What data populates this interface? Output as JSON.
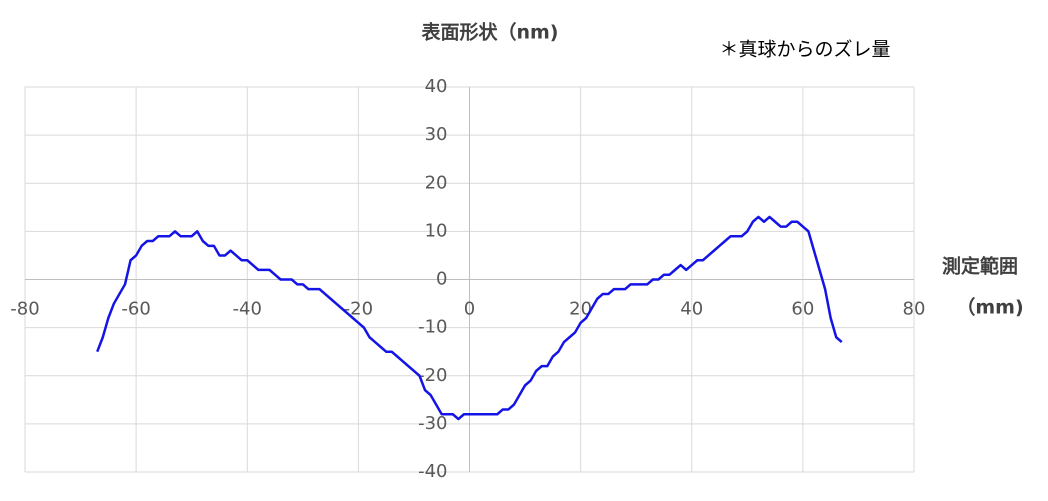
{
  "chart_data": {
    "type": "line",
    "title": "表面形状（nm)",
    "annotation": "＊真球からのズレ量",
    "x_label": "測定範囲",
    "x_unit": "（mm)",
    "x": [
      -67,
      -66,
      -65,
      -64,
      -63,
      -62,
      -61,
      -60,
      -59,
      -58,
      -57,
      -56,
      -55,
      -54,
      -53,
      -52,
      -51,
      -50,
      -49,
      -48,
      -47,
      -46,
      -45,
      -44,
      -43,
      -42,
      -41,
      -40,
      -39,
      -38,
      -37,
      -36,
      -35,
      -34,
      -33,
      -32,
      -31,
      -30,
      -29,
      -28,
      -27,
      -26,
      -25,
      -24,
      -23,
      -22,
      -21,
      -20,
      -19,
      -18,
      -17,
      -16,
      -15,
      -14,
      -13,
      -12,
      -11,
      -10,
      -9,
      -8,
      -7,
      -6,
      -5,
      -4,
      -3,
      -2,
      -1,
      0,
      1,
      2,
      3,
      4,
      5,
      6,
      7,
      8,
      9,
      10,
      11,
      12,
      13,
      14,
      15,
      16,
      17,
      18,
      19,
      20,
      21,
      22,
      23,
      24,
      25,
      26,
      27,
      28,
      29,
      30,
      31,
      32,
      33,
      34,
      35,
      36,
      37,
      38,
      39,
      40,
      41,
      42,
      43,
      44,
      45,
      46,
      47,
      48,
      49,
      50,
      51,
      52,
      53,
      54,
      55,
      56,
      57,
      58,
      59,
      60,
      61,
      62,
      63,
      64,
      65,
      66,
      67
    ],
    "series": [
      {
        "color": "#1414e6",
        "values": [
          -15,
          -12,
          -8,
          -5,
          -3,
          -1,
          4,
          5,
          7,
          8,
          8,
          9,
          9,
          9,
          10,
          9,
          9,
          9,
          10,
          8,
          7,
          7,
          5,
          5,
          6,
          5,
          4,
          4,
          3,
          2,
          2,
          2,
          1,
          0,
          0,
          0,
          -1,
          -1,
          -2,
          -2,
          -2,
          -3,
          -4,
          -5,
          -6,
          -7,
          -8,
          -9,
          -10,
          -12,
          -13,
          -14,
          -15,
          -15,
          -16,
          -17,
          -18,
          -19,
          -20,
          -23,
          -24,
          -26,
          -28,
          -28,
          -28,
          -29,
          -28,
          -28,
          -28,
          -28,
          -28,
          -28,
          -28,
          -27,
          -27,
          -26,
          -24,
          -22,
          -21,
          -19,
          -18,
          -18,
          -16,
          -15,
          -13,
          -12,
          -11,
          -9,
          -8,
          -6,
          -4,
          -3,
          -3,
          -2,
          -2,
          -2,
          -1,
          -1,
          -1,
          -1,
          0,
          0,
          1,
          1,
          2,
          3,
          2,
          3,
          4,
          4,
          5,
          6,
          7,
          8,
          9,
          9,
          9,
          10,
          12,
          13,
          12,
          13,
          12,
          11,
          11,
          12,
          12,
          11,
          10,
          6,
          2,
          -2,
          -8,
          -12,
          -13
        ]
      }
    ],
    "xlim": [
      -80,
      80
    ],
    "xticks": [
      -80,
      -60,
      -40,
      -20,
      0,
      20,
      40,
      60,
      80
    ],
    "ylim": [
      -40,
      40
    ],
    "yticks": [
      -40,
      -30,
      -20,
      -10,
      0,
      10,
      20,
      30,
      40
    ],
    "grid": true
  }
}
